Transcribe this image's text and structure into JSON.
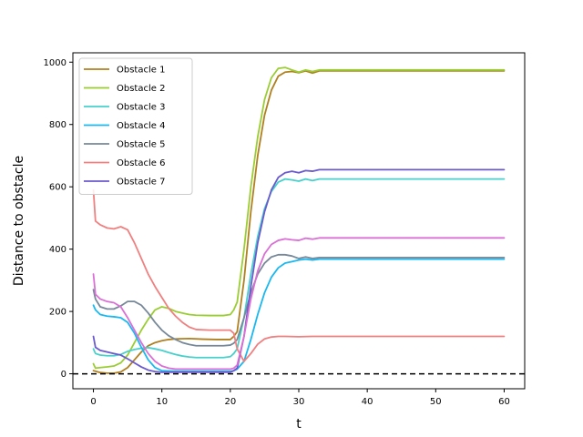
{
  "chart_data": {
    "type": "line",
    "xlabel": "t",
    "ylabel": "Distance to obstacle",
    "xlim": [
      -3,
      63
    ],
    "ylim": [
      -48,
      1030
    ],
    "xticks": [
      0,
      10,
      20,
      30,
      40,
      50,
      60
    ],
    "yticks": [
      0,
      200,
      400,
      600,
      800,
      1000
    ],
    "legend_position": "top-left",
    "reference_line": {
      "y": 0,
      "style": "dashed",
      "color": "#000000"
    },
    "series": [
      {
        "name": "Obstacle 1",
        "color": "#b08020",
        "in_legend": true,
        "points": [
          [
            0,
            10
          ],
          [
            1,
            4
          ],
          [
            2,
            2
          ],
          [
            3,
            2
          ],
          [
            4,
            6
          ],
          [
            5,
            20
          ],
          [
            6,
            45
          ],
          [
            7,
            70
          ],
          [
            8,
            90
          ],
          [
            9,
            100
          ],
          [
            10,
            106
          ],
          [
            11,
            110
          ],
          [
            12,
            112
          ],
          [
            14,
            113
          ],
          [
            16,
            111
          ],
          [
            18,
            110
          ],
          [
            20,
            110
          ],
          [
            20.5,
            120
          ],
          [
            21,
            135
          ],
          [
            22,
            300
          ],
          [
            23,
            520
          ],
          [
            24,
            700
          ],
          [
            25,
            830
          ],
          [
            26,
            910
          ],
          [
            27,
            955
          ],
          [
            28,
            968
          ],
          [
            29,
            970
          ],
          [
            30,
            966
          ],
          [
            31,
            972
          ],
          [
            32,
            965
          ],
          [
            33,
            972
          ],
          [
            40,
            972
          ],
          [
            50,
            972
          ],
          [
            60,
            972
          ]
        ]
      },
      {
        "name": "Obstacle 2",
        "color": "#9acd32",
        "in_legend": true,
        "points": [
          [
            0,
            32
          ],
          [
            0.3,
            18
          ],
          [
            1,
            20
          ],
          [
            2,
            22
          ],
          [
            3,
            25
          ],
          [
            4,
            35
          ],
          [
            5,
            60
          ],
          [
            6,
            100
          ],
          [
            7,
            140
          ],
          [
            8,
            175
          ],
          [
            9,
            205
          ],
          [
            10,
            215
          ],
          [
            11,
            210
          ],
          [
            12,
            200
          ],
          [
            13,
            195
          ],
          [
            14,
            190
          ],
          [
            15,
            188
          ],
          [
            17,
            187
          ],
          [
            19,
            187
          ],
          [
            20,
            190
          ],
          [
            20.5,
            205
          ],
          [
            21,
            230
          ],
          [
            22,
            400
          ],
          [
            23,
            600
          ],
          [
            24,
            760
          ],
          [
            25,
            880
          ],
          [
            26,
            950
          ],
          [
            27,
            980
          ],
          [
            28,
            983
          ],
          [
            29,
            975
          ],
          [
            30,
            968
          ],
          [
            31,
            975
          ],
          [
            32,
            970
          ],
          [
            33,
            975
          ],
          [
            40,
            975
          ],
          [
            50,
            975
          ],
          [
            60,
            975
          ]
        ]
      },
      {
        "name": "Obstacle 3",
        "color": "#48d1cc",
        "in_legend": true,
        "points": [
          [
            0,
            80
          ],
          [
            0.3,
            65
          ],
          [
            1,
            60
          ],
          [
            2,
            58
          ],
          [
            3,
            58
          ],
          [
            4,
            62
          ],
          [
            5,
            72
          ],
          [
            6,
            78
          ],
          [
            7,
            82
          ],
          [
            8,
            84
          ],
          [
            9,
            80
          ],
          [
            10,
            75
          ],
          [
            11,
            68
          ],
          [
            12,
            62
          ],
          [
            13,
            57
          ],
          [
            14,
            54
          ],
          [
            15,
            52
          ],
          [
            17,
            52
          ],
          [
            19,
            52
          ],
          [
            20,
            55
          ],
          [
            20.5,
            65
          ],
          [
            21,
            80
          ],
          [
            22,
            180
          ],
          [
            23,
            320
          ],
          [
            24,
            440
          ],
          [
            25,
            530
          ],
          [
            26,
            585
          ],
          [
            27,
            615
          ],
          [
            28,
            625
          ],
          [
            29,
            622
          ],
          [
            30,
            618
          ],
          [
            31,
            625
          ],
          [
            32,
            620
          ],
          [
            33,
            625
          ],
          [
            40,
            625
          ],
          [
            50,
            625
          ],
          [
            60,
            625
          ]
        ]
      },
      {
        "name": "Obstacle 4",
        "color": "#1ab8f0",
        "in_legend": true,
        "points": [
          [
            0,
            220
          ],
          [
            0.3,
            205
          ],
          [
            1,
            190
          ],
          [
            2,
            185
          ],
          [
            3,
            183
          ],
          [
            4,
            180
          ],
          [
            5,
            165
          ],
          [
            6,
            130
          ],
          [
            7,
            85
          ],
          [
            8,
            45
          ],
          [
            9,
            20
          ],
          [
            10,
            10
          ],
          [
            12,
            8
          ],
          [
            15,
            8
          ],
          [
            18,
            8
          ],
          [
            20,
            8
          ],
          [
            20.5,
            10
          ],
          [
            21,
            15
          ],
          [
            22,
            40
          ],
          [
            23,
            110
          ],
          [
            24,
            190
          ],
          [
            25,
            260
          ],
          [
            26,
            310
          ],
          [
            27,
            340
          ],
          [
            28,
            355
          ],
          [
            29,
            360
          ],
          [
            30,
            365
          ],
          [
            31,
            368
          ],
          [
            32,
            365
          ],
          [
            33,
            368
          ],
          [
            40,
            368
          ],
          [
            50,
            368
          ],
          [
            60,
            368
          ]
        ]
      },
      {
        "name": "Obstacle 5",
        "color": "#778899",
        "in_legend": true,
        "points": [
          [
            0,
            270
          ],
          [
            0.3,
            240
          ],
          [
            1,
            215
          ],
          [
            2,
            208
          ],
          [
            3,
            208
          ],
          [
            4,
            218
          ],
          [
            5,
            232
          ],
          [
            6,
            232
          ],
          [
            7,
            220
          ],
          [
            8,
            195
          ],
          [
            9,
            165
          ],
          [
            10,
            140
          ],
          [
            11,
            122
          ],
          [
            12,
            110
          ],
          [
            13,
            100
          ],
          [
            14,
            94
          ],
          [
            15,
            90
          ],
          [
            17,
            90
          ],
          [
            19,
            90
          ],
          [
            20,
            92
          ],
          [
            20.5,
            98
          ],
          [
            21,
            110
          ],
          [
            22,
            180
          ],
          [
            23,
            260
          ],
          [
            24,
            320
          ],
          [
            25,
            355
          ],
          [
            26,
            375
          ],
          [
            27,
            382
          ],
          [
            28,
            382
          ],
          [
            29,
            378
          ],
          [
            30,
            370
          ],
          [
            31,
            375
          ],
          [
            32,
            370
          ],
          [
            33,
            373
          ],
          [
            40,
            373
          ],
          [
            50,
            373
          ],
          [
            60,
            373
          ]
        ]
      },
      {
        "name": "Obstacle 6",
        "color": "#f08080",
        "in_legend": true,
        "points": [
          [
            0,
            590
          ],
          [
            0.3,
            490
          ],
          [
            1,
            478
          ],
          [
            2,
            468
          ],
          [
            3,
            465
          ],
          [
            4,
            472
          ],
          [
            5,
            462
          ],
          [
            6,
            420
          ],
          [
            7,
            370
          ],
          [
            8,
            320
          ],
          [
            9,
            280
          ],
          [
            10,
            245
          ],
          [
            11,
            210
          ],
          [
            12,
            185
          ],
          [
            13,
            165
          ],
          [
            14,
            150
          ],
          [
            15,
            142
          ],
          [
            17,
            140
          ],
          [
            19,
            140
          ],
          [
            20,
            140
          ],
          [
            20.5,
            130
          ],
          [
            21,
            80
          ],
          [
            22,
            40
          ],
          [
            23,
            65
          ],
          [
            24,
            95
          ],
          [
            25,
            112
          ],
          [
            26,
            118
          ],
          [
            27,
            120
          ],
          [
            28,
            120
          ],
          [
            30,
            119
          ],
          [
            32,
            120
          ],
          [
            40,
            120
          ],
          [
            50,
            120
          ],
          [
            60,
            120
          ]
        ]
      },
      {
        "name": "Obstacle 7",
        "color": "#6a5acd",
        "in_legend": true,
        "points": [
          [
            0,
            120
          ],
          [
            0.3,
            85
          ],
          [
            1,
            75
          ],
          [
            2,
            70
          ],
          [
            3,
            65
          ],
          [
            4,
            60
          ],
          [
            5,
            48
          ],
          [
            6,
            35
          ],
          [
            7,
            22
          ],
          [
            8,
            12
          ],
          [
            9,
            7
          ],
          [
            10,
            5
          ],
          [
            14,
            5
          ],
          [
            18,
            5
          ],
          [
            20,
            5
          ],
          [
            20.5,
            10
          ],
          [
            21,
            18
          ],
          [
            22,
            120
          ],
          [
            23,
            280
          ],
          [
            24,
            420
          ],
          [
            25,
            520
          ],
          [
            26,
            590
          ],
          [
            27,
            630
          ],
          [
            28,
            645
          ],
          [
            29,
            650
          ],
          [
            30,
            645
          ],
          [
            31,
            652
          ],
          [
            32,
            650
          ],
          [
            33,
            655
          ],
          [
            40,
            655
          ],
          [
            50,
            655
          ],
          [
            60,
            655
          ]
        ]
      },
      {
        "name": "",
        "color": "#da70d6",
        "in_legend": false,
        "points": [
          [
            0,
            320
          ],
          [
            0.3,
            255
          ],
          [
            1,
            240
          ],
          [
            2,
            232
          ],
          [
            3,
            228
          ],
          [
            4,
            215
          ],
          [
            5,
            180
          ],
          [
            6,
            140
          ],
          [
            7,
            100
          ],
          [
            8,
            65
          ],
          [
            9,
            40
          ],
          [
            10,
            25
          ],
          [
            11,
            18
          ],
          [
            12,
            15
          ],
          [
            14,
            15
          ],
          [
            18,
            15
          ],
          [
            20,
            15
          ],
          [
            20.5,
            18
          ],
          [
            21,
            28
          ],
          [
            22,
            120
          ],
          [
            23,
            240
          ],
          [
            24,
            330
          ],
          [
            25,
            385
          ],
          [
            26,
            415
          ],
          [
            27,
            428
          ],
          [
            28,
            433
          ],
          [
            29,
            430
          ],
          [
            30,
            428
          ],
          [
            31,
            435
          ],
          [
            32,
            432
          ],
          [
            33,
            436
          ],
          [
            40,
            436
          ],
          [
            50,
            436
          ],
          [
            60,
            436
          ]
        ]
      }
    ]
  }
}
